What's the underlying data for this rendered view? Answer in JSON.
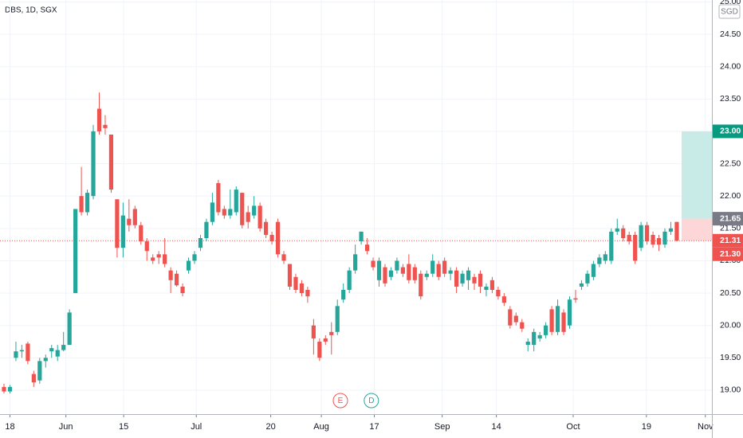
{
  "chart_data": {
    "type": "candlestick",
    "title": "DBS, 1D, SGX",
    "currency": "SGD",
    "up_color": "#26a69a",
    "down_color": "#ef5350",
    "x": [
      0,
      1,
      2,
      3,
      4,
      5,
      6,
      7,
      8,
      9,
      10,
      11,
      12,
      13,
      14,
      15,
      16,
      17,
      18,
      19,
      20,
      21,
      22,
      23,
      24,
      25,
      26,
      27,
      28,
      29,
      30,
      31,
      32,
      33,
      34,
      35,
      36,
      37,
      38,
      39,
      40,
      41,
      42,
      43,
      44,
      45,
      46,
      47,
      48,
      49,
      50,
      51,
      52,
      53,
      54,
      55,
      56,
      57,
      58,
      59,
      60,
      61,
      62,
      63,
      64,
      65,
      66,
      67,
      68,
      69,
      70,
      71,
      72,
      73,
      74,
      75,
      76,
      77,
      78,
      79,
      80,
      81,
      82,
      83,
      84,
      85,
      86,
      87,
      88,
      89,
      90,
      91,
      92,
      93,
      94,
      95,
      96,
      97,
      98,
      99,
      100,
      101,
      102,
      103,
      104,
      105,
      106,
      107,
      108,
      109,
      110,
      111,
      112,
      113
    ],
    "open": [
      19.05,
      18.98,
      19.5,
      19.6,
      19.72,
      19.25,
      19.15,
      19.45,
      19.6,
      19.52,
      19.62,
      19.7,
      20.5,
      22.0,
      21.75,
      22.0,
      23.35,
      23.1,
      22.95,
      21.95,
      21.2,
      21.65,
      21.8,
      21.55,
      21.3,
      21.05,
      21.1,
      21.1,
      20.85,
      20.8,
      20.6,
      20.85,
      21.0,
      21.2,
      21.35,
      21.6,
      22.2,
      21.8,
      21.7,
      21.75,
      22.05,
      21.75,
      21.7,
      21.85,
      21.6,
      21.4,
      21.6,
      21.1,
      20.95,
      20.75,
      20.65,
      20.55,
      20.0,
      19.75,
      19.8,
      19.9,
      19.9,
      20.4,
      20.55,
      20.85,
      21.3,
      21.25,
      21.0,
      20.7,
      20.9,
      20.75,
      20.85,
      20.9,
      20.95,
      20.9,
      20.8,
      20.75,
      20.8,
      20.95,
      21.0,
      20.8,
      20.85,
      20.65,
      20.7,
      20.75,
      20.8,
      20.55,
      20.7,
      20.55,
      20.45,
      20.25,
      20.15,
      20.05,
      19.7,
      19.7,
      19.8,
      19.85,
      20.25,
      19.9,
      20.2,
      20.0,
      20.42,
      20.6,
      20.65,
      20.75,
      20.95,
      21.0,
      21.0,
      21.45,
      21.5,
      21.4,
      21.4,
      21.2,
      21.55,
      21.4,
      21.35,
      21.25,
      21.45,
      21.6
    ],
    "high": [
      19.1,
      19.08,
      19.75,
      19.7,
      19.75,
      19.3,
      19.5,
      19.55,
      19.7,
      19.7,
      19.9,
      20.25,
      21.8,
      22.45,
      22.1,
      23.1,
      23.6,
      23.25,
      22.95,
      21.95,
      21.9,
      21.95,
      21.85,
      21.6,
      21.35,
      21.1,
      21.15,
      21.35,
      20.9,
      20.85,
      20.65,
      21.05,
      21.15,
      21.4,
      21.65,
      22.05,
      22.25,
      21.85,
      22.1,
      22.15,
      22.05,
      21.85,
      22.0,
      21.9,
      21.65,
      21.45,
      21.65,
      21.15,
      20.95,
      20.8,
      20.7,
      20.6,
      20.1,
      19.8,
      19.85,
      20.05,
      20.4,
      20.65,
      20.9,
      21.25,
      21.45,
      21.35,
      21.05,
      21.05,
      20.95,
      20.9,
      21.05,
      20.95,
      21.1,
      20.95,
      20.85,
      20.85,
      21.1,
      21.0,
      21.05,
      20.9,
      20.9,
      20.85,
      20.9,
      20.8,
      20.85,
      20.65,
      20.75,
      20.6,
      20.5,
      20.3,
      20.2,
      20.1,
      19.8,
      19.95,
      19.9,
      20.05,
      20.3,
      20.4,
      20.25,
      20.45,
      20.55,
      20.7,
      20.85,
      21.0,
      21.1,
      21.15,
      21.5,
      21.65,
      21.55,
      21.45,
      21.45,
      21.6,
      21.6,
      21.45,
      21.4,
      21.5,
      21.6,
      21.6
    ],
    "low": [
      18.95,
      18.95,
      19.45,
      19.5,
      19.4,
      19.05,
      19.1,
      19.35,
      19.5,
      19.45,
      19.6,
      19.7,
      20.5,
      21.7,
      21.7,
      21.95,
      22.95,
      22.95,
      22.05,
      21.05,
      21.05,
      21.45,
      21.5,
      21.25,
      21.0,
      20.95,
      20.95,
      20.9,
      20.5,
      20.6,
      20.45,
      20.8,
      20.95,
      21.15,
      21.3,
      21.55,
      21.7,
      21.65,
      21.65,
      21.7,
      21.5,
      21.5,
      21.65,
      21.45,
      21.35,
      21.25,
      21.05,
      20.95,
      20.55,
      20.5,
      20.45,
      20.35,
      19.55,
      19.45,
      19.7,
      19.55,
      19.85,
      20.35,
      20.5,
      20.8,
      21.25,
      21.1,
      20.85,
      20.6,
      20.6,
      20.7,
      20.8,
      20.75,
      20.65,
      20.65,
      20.4,
      20.7,
      20.75,
      20.7,
      20.75,
      20.7,
      20.5,
      20.6,
      20.55,
      20.55,
      20.5,
      20.45,
      20.5,
      20.4,
      20.3,
      19.95,
      20.0,
      19.9,
      19.6,
      19.6,
      19.75,
      19.8,
      19.85,
      19.85,
      19.85,
      19.95,
      20.35,
      20.55,
      20.6,
      20.7,
      20.9,
      20.95,
      20.95,
      21.4,
      21.3,
      21.25,
      20.95,
      21.15,
      21.25,
      21.2,
      21.15,
      21.2,
      21.4,
      21.3
    ],
    "close": [
      18.98,
      19.05,
      19.6,
      19.62,
      19.45,
      19.12,
      19.45,
      19.5,
      19.65,
      19.62,
      19.7,
      20.2,
      21.8,
      21.75,
      22.05,
      23.0,
      23.0,
      23.05,
      22.1,
      21.2,
      21.7,
      21.55,
      21.55,
      21.3,
      21.15,
      21.0,
      21.05,
      20.95,
      20.7,
      20.62,
      20.5,
      21.0,
      21.1,
      21.35,
      21.6,
      21.9,
      21.75,
      21.7,
      21.8,
      22.1,
      21.55,
      21.6,
      21.85,
      21.5,
      21.4,
      21.3,
      21.1,
      21.0,
      20.6,
      20.55,
      20.5,
      20.45,
      19.8,
      19.5,
      19.75,
      19.85,
      20.3,
      20.55,
      20.85,
      21.1,
      21.45,
      21.15,
      20.9,
      21.0,
      20.65,
      20.85,
      21.0,
      20.8,
      20.7,
      20.7,
      20.45,
      20.8,
      21.0,
      20.75,
      20.8,
      20.85,
      20.6,
      20.8,
      20.85,
      20.65,
      20.6,
      20.6,
      20.55,
      20.45,
      20.35,
      20.0,
      20.05,
      19.95,
      19.75,
      19.9,
      19.85,
      20.0,
      19.9,
      20.3,
      19.9,
      20.4,
      20.4,
      20.65,
      20.8,
      20.95,
      21.05,
      21.1,
      21.45,
      21.5,
      21.35,
      21.3,
      21.0,
      21.55,
      21.3,
      21.25,
      21.25,
      21.45,
      21.5,
      21.31
    ],
    "xlim": [
      -0.67,
      118.9
    ],
    "xticks": [
      {
        "value": 1,
        "label": "18"
      },
      {
        "value": 10.4,
        "label": "Jun"
      },
      {
        "value": 20.1,
        "label": "15"
      },
      {
        "value": 32.3,
        "label": "Jul"
      },
      {
        "value": 44.8,
        "label": "20"
      },
      {
        "value": 53.3,
        "label": "Aug"
      },
      {
        "value": 62.2,
        "label": "17"
      },
      {
        "value": 73.6,
        "label": "Sep"
      },
      {
        "value": 82.7,
        "label": "14"
      },
      {
        "value": 95.6,
        "label": "Oct"
      },
      {
        "value": 107.9,
        "label": "19"
      },
      {
        "value": 117.8,
        "label": "Nov"
      }
    ],
    "ylim": [
      18.63,
      25.03
    ],
    "yticks": [
      {
        "value": 19,
        "label": "19.00"
      },
      {
        "value": 19.5,
        "label": "19.50"
      },
      {
        "value": 20,
        "label": "20.00"
      },
      {
        "value": 20.5,
        "label": "20.50"
      },
      {
        "value": 21,
        "label": "21.00"
      },
      {
        "value": 21.5,
        "label": "21.50"
      },
      {
        "value": 22,
        "label": "22.00"
      },
      {
        "value": 22.5,
        "label": "22.50"
      },
      {
        "value": 23,
        "label": "23.00"
      },
      {
        "value": 23.5,
        "label": "23.50"
      },
      {
        "value": 24,
        "label": "24.00"
      },
      {
        "value": 24.5,
        "label": "24.50"
      },
      {
        "value": 25,
        "label": "25.00"
      }
    ],
    "price_labels": [
      {
        "value": 23.0,
        "label": "23.00",
        "color": "#089981"
      },
      {
        "value": 21.65,
        "label": "21.65",
        "color": "#787b86"
      },
      {
        "value": 21.31,
        "label": "21.31",
        "color": "#ef5350"
      },
      {
        "value": 21.3,
        "label": "21.30",
        "color": "#ef5350"
      }
    ],
    "zone_colors": [
      "#c8ebe8",
      "#fdd6d7"
    ],
    "events": [
      {
        "label": "E",
        "x": 56.5,
        "color": "#ef5350"
      },
      {
        "label": "D",
        "x": 61.7,
        "color": "#26a69a"
      }
    ],
    "grid": true
  }
}
